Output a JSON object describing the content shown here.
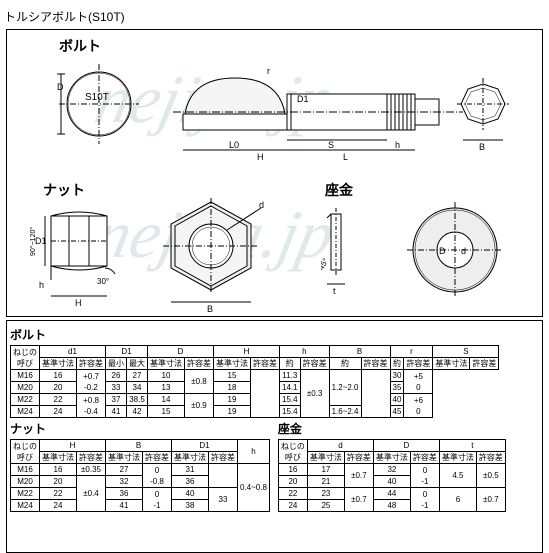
{
  "doc_title": "トルシアボルト(S10T)",
  "watermark": "nejiya.jp",
  "colors": {
    "line": "#000",
    "wm": "#307088",
    "bg": "#ffffff"
  },
  "diagram": {
    "bolt_label": "ボルト",
    "nut_label": "ナット",
    "washer_label": "座金",
    "marks": {
      "head": "S10T"
    },
    "dims": [
      "D",
      "L",
      "H",
      "r",
      "D1",
      "L0",
      "S",
      "h",
      "B",
      "d",
      "D1",
      "H",
      "B",
      "d",
      "D",
      "t",
      "45°",
      "90°~120°",
      "30°"
    ]
  },
  "bolt_table": {
    "title": "ボルト",
    "head1": [
      "ねじの呼び",
      "d1",
      "",
      "D1",
      "",
      "D",
      "",
      "H",
      "",
      "h",
      "",
      "B",
      "",
      "r",
      "",
      "S",
      ""
    ],
    "head2": [
      "",
      "基準寸法",
      "許容差",
      "最小",
      "最大",
      "基準寸法",
      "許容差",
      "基準寸法",
      "許容差",
      "約",
      "許容差",
      "約",
      "許容差",
      "約",
      "許容差",
      "基準寸法",
      "許容差"
    ],
    "rows": [
      [
        "M16",
        "16",
        "+0.7\n-0.2",
        "26",
        "27",
        "10",
        "±0.8",
        "15",
        "11.3",
        "±0.3",
        "1.2~2.0",
        "",
        "30",
        "+5\n0"
      ],
      [
        "M20",
        "20",
        "",
        "33",
        "34",
        "13",
        "",
        "18",
        "14.1",
        "",
        "",
        "",
        "35",
        ""
      ],
      [
        "M22",
        "22",
        "+0.8\n-0.4",
        "37",
        "38.5",
        "14",
        "±0.9",
        "19",
        "15.4",
        "",
        "",
        "",
        "40",
        "+6\n0"
      ],
      [
        "M24",
        "24",
        "",
        "41",
        "42",
        "15",
        "",
        "19",
        "15.4",
        "",
        "1.6~2.4",
        "",
        "45",
        ""
      ]
    ]
  },
  "nut_table": {
    "title": "ナット",
    "head1": [
      "ねじの呼び",
      "H",
      "",
      "B",
      "",
      "D1",
      "",
      "h"
    ],
    "head2": [
      "",
      "基準寸法",
      "許容差",
      "基準寸法",
      "許容差",
      "基準寸法",
      "許容差",
      ""
    ],
    "rows": [
      [
        "M16",
        "16",
        "±0.35",
        "27",
        "0\n-0.8",
        "31",
        "",
        "0.4~0.8"
      ],
      [
        "M20",
        "20",
        "",
        "32",
        "",
        "36",
        "",
        ""
      ],
      [
        "M22",
        "22",
        "±0.4",
        "36",
        "0\n-1",
        "40",
        "33",
        ""
      ],
      [
        "M24",
        "24",
        "",
        "41",
        "",
        "38",
        "",
        ""
      ]
    ]
  },
  "washer_table": {
    "title": "座金",
    "head1": [
      "ねじの呼び",
      "d",
      "",
      "D",
      "",
      "t",
      ""
    ],
    "head2": [
      "",
      "基準寸法",
      "許容差",
      "基準寸法",
      "許容差",
      "基準寸法",
      "許容差"
    ],
    "rows": [
      [
        "16",
        "17",
        "±0.7",
        "32",
        "0\n-1",
        "4.5",
        "±0.5"
      ],
      [
        "20",
        "21",
        "",
        "40",
        "",
        "",
        ""
      ],
      [
        "22",
        "23",
        "±0.7",
        "44",
        "0\n-1",
        "6",
        "±0.7"
      ],
      [
        "24",
        "25",
        "",
        "48",
        "",
        "",
        ""
      ]
    ]
  }
}
